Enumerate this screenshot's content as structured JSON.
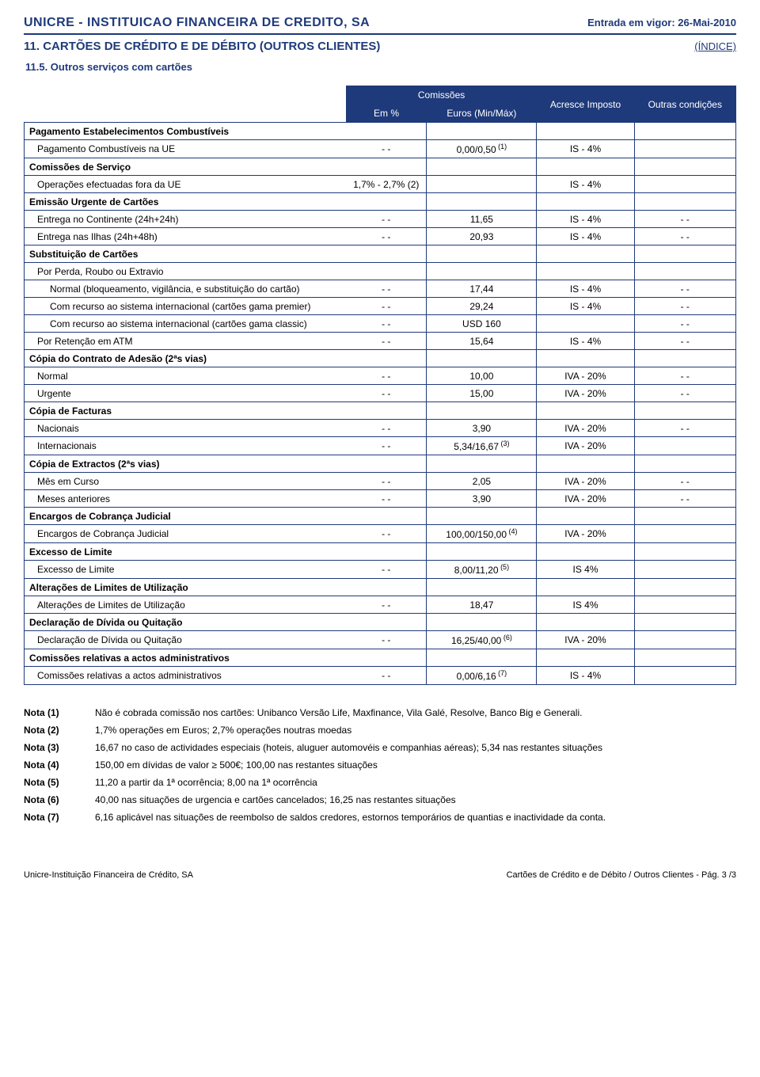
{
  "colors": {
    "primary": "#1f3a7a",
    "background": "#ffffff",
    "text": "#000000"
  },
  "header": {
    "company": "UNICRE - INSTITUICAO FINANCEIRA DE CREDITO, SA",
    "entry_label": "Entrada em vigor: 26-Mai-2010",
    "section": "11. CARTÕES DE CRÉDITO E DE DÉBITO (OUTROS CLIENTES)",
    "index": "(ÍNDICE)",
    "subsection": "11.5. Outros serviços com cartões"
  },
  "table_headers": {
    "comissoes": "Comissões",
    "em_pct": "Em %",
    "euros": "Euros (Min/Máx)",
    "imposto": "Acresce Imposto",
    "outras": "Outras condições"
  },
  "rows": [
    {
      "type": "section",
      "label": "Pagamento Estabelecimentos Combustíveis"
    },
    {
      "type": "data",
      "indent": 1,
      "label": "Pagamento Combustíveis na UE",
      "pct": "- -",
      "eur": "0,00/0,50",
      "sup": "(1)",
      "imp": "IS - 4%",
      "out": ""
    },
    {
      "type": "section",
      "label": "Comissões de Serviço"
    },
    {
      "type": "data",
      "indent": 1,
      "label": "Operações efectuadas fora da UE",
      "pct": "1,7% - 2,7% (2)",
      "eur": "",
      "imp": "IS - 4%",
      "out": ""
    },
    {
      "type": "section",
      "label": "Emissão Urgente de Cartões"
    },
    {
      "type": "data",
      "indent": 1,
      "label": "Entrega no Continente (24h+24h)",
      "pct": "- -",
      "eur": "11,65",
      "imp": "IS - 4%",
      "out": "- -"
    },
    {
      "type": "data",
      "indent": 1,
      "label": "Entrega nas Ilhas (24h+48h)",
      "pct": "- -",
      "eur": "20,93",
      "imp": "IS - 4%",
      "out": "- -"
    },
    {
      "type": "section",
      "label": "Substituição de Cartões"
    },
    {
      "type": "data",
      "indent": 1,
      "label": "Por Perda, Roubo ou Extravio",
      "pct": "",
      "eur": "",
      "imp": "",
      "out": ""
    },
    {
      "type": "data",
      "indent": 2,
      "label": "Normal (bloqueamento, vigilância, e substituição do cartão)",
      "pct": "- -",
      "eur": "17,44",
      "imp": "IS - 4%",
      "out": "- -"
    },
    {
      "type": "data",
      "indent": 2,
      "label": "Com recurso ao sistema internacional (cartões gama premier)",
      "pct": "- -",
      "eur": "29,24",
      "imp": "IS - 4%",
      "out": "- -"
    },
    {
      "type": "data",
      "indent": 2,
      "label": "Com recurso ao sistema internacional (cartões gama classic)",
      "pct": "- -",
      "eur": "USD 160",
      "imp": "",
      "out": "- -"
    },
    {
      "type": "data",
      "indent": 1,
      "label": "Por Retenção em ATM",
      "pct": "- -",
      "eur": "15,64",
      "imp": "IS - 4%",
      "out": "- -"
    },
    {
      "type": "section",
      "label": "Cópia do Contrato de Adesão (2ªs vias)"
    },
    {
      "type": "data",
      "indent": 1,
      "label": "Normal",
      "pct": "- -",
      "eur": "10,00",
      "imp": "IVA - 20%",
      "out": "- -"
    },
    {
      "type": "data",
      "indent": 1,
      "label": "Urgente",
      "pct": "- -",
      "eur": "15,00",
      "imp": "IVA - 20%",
      "out": "- -"
    },
    {
      "type": "section",
      "label": "Cópia de Facturas"
    },
    {
      "type": "data",
      "indent": 1,
      "label": "Nacionais",
      "pct": "- -",
      "eur": "3,90",
      "imp": "IVA - 20%",
      "out": "- -"
    },
    {
      "type": "data",
      "indent": 1,
      "label": "Internacionais",
      "pct": "- -",
      "eur": "5,34/16,67",
      "sup": "(3)",
      "imp": "IVA - 20%",
      "out": ""
    },
    {
      "type": "section",
      "label": "Cópia de Extractos  (2ªs vias)"
    },
    {
      "type": "data",
      "indent": 1,
      "label": "Mês em Curso",
      "pct": "- -",
      "eur": "2,05",
      "imp": "IVA - 20%",
      "out": "- -"
    },
    {
      "type": "data",
      "indent": 1,
      "label": "Meses anteriores",
      "pct": "- -",
      "eur": "3,90",
      "imp": "IVA - 20%",
      "out": "- -"
    },
    {
      "type": "section",
      "label": "Encargos de Cobrança Judicial"
    },
    {
      "type": "data",
      "indent": 1,
      "label": "Encargos de Cobrança Judicial",
      "pct": "- -",
      "eur": "100,00/150,00",
      "sup": "(4)",
      "imp": "IVA - 20%",
      "out": ""
    },
    {
      "type": "section",
      "label": "Excesso de Limite"
    },
    {
      "type": "data",
      "indent": 1,
      "label": "Excesso de Limite",
      "pct": "- -",
      "eur": "8,00/11,20",
      "sup": "(5)",
      "imp": "IS 4%",
      "out": ""
    },
    {
      "type": "section",
      "label": "Alterações de Limites de Utilização"
    },
    {
      "type": "data",
      "indent": 1,
      "label": "Alterações de Limites de Utilização",
      "pct": "- -",
      "eur": "18,47",
      "imp": "IS 4%",
      "out": ""
    },
    {
      "type": "section",
      "label": "Declaração de Dívida ou Quitação"
    },
    {
      "type": "data",
      "indent": 1,
      "label": "Declaração de Dívida ou Quitação",
      "pct": "- -",
      "eur": "16,25/40,00",
      "sup": "(6)",
      "imp": "IVA - 20%",
      "out": ""
    },
    {
      "type": "section",
      "label": "Comissões relativas a actos administrativos"
    },
    {
      "type": "data",
      "indent": 1,
      "label": "Comissões relativas a actos administrativos",
      "pct": "- -",
      "eur": "0,00/6,16",
      "sup": "(7)",
      "imp": "IS - 4%",
      "out": ""
    }
  ],
  "notes": [
    {
      "label": "Nota (1)",
      "text": "Não é cobrada comissão nos cartões: Unibanco Versão Life, Maxfinance, Vila Galé, Resolve, Banco Big e Generali."
    },
    {
      "label": "Nota (2)",
      "text": "1,7% operações em Euros; 2,7% operações noutras moedas"
    },
    {
      "label": "Nota (3)",
      "text": "16,67 no caso de actividades especiais (hoteis, aluguer automovéis e companhias aéreas); 5,34 nas restantes situações"
    },
    {
      "label": "Nota (4)",
      "text": "150,00  em dívidas de valor ≥ 500€;  100,00 nas restantes situações"
    },
    {
      "label": "Nota (5)",
      "text": "11,20  a partir da 1ª ocorrência; 8,00 na 1ª ocorrência"
    },
    {
      "label": "Nota (6)",
      "text": "40,00 nas situações de urgencia e cartões cancelados; 16,25 nas restantes situações"
    },
    {
      "label": "Nota (7)",
      "text": "6,16 aplicável nas situações de reembolso de saldos credores, estornos temporários de quantias e inactividade da conta."
    }
  ],
  "footer": {
    "left": "Unicre-Instituição Financeira de Crédito, SA",
    "right": "Cartões de Crédito e de Débito / Outros Clientes - Pág. 3 /3"
  }
}
